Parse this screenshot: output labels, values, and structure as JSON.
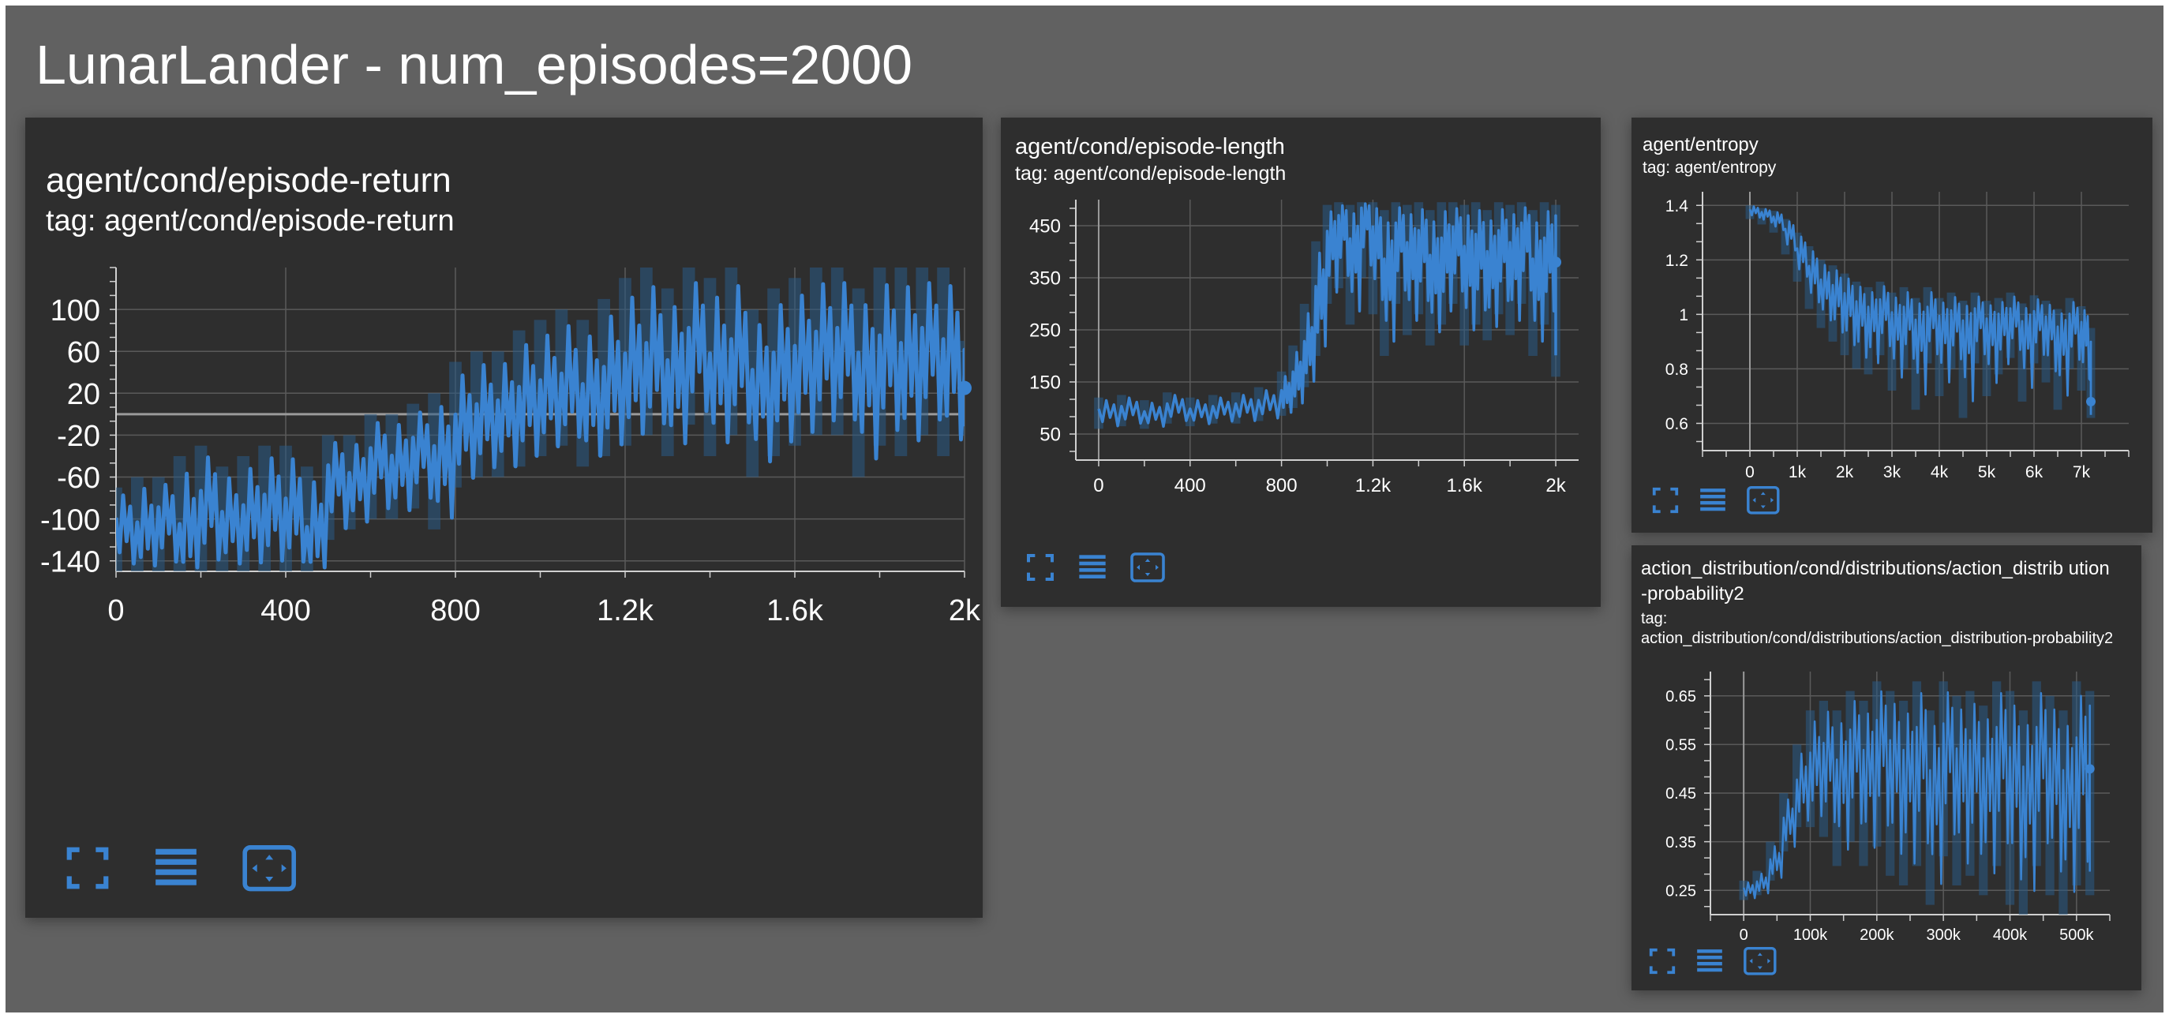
{
  "page": {
    "title": "LunarLander - num_episodes=2000"
  },
  "colors": {
    "background": "#616161",
    "card": "#2e2e2e",
    "grid": "#5a5a5a",
    "axis": "#d0d0d0",
    "line": "#3a83d1",
    "line_faint": "#2a5a86",
    "icon": "#3a83d1"
  },
  "icons": {
    "fullscreen": "fullscreen-icon",
    "data_table": "data-table-icon",
    "fit_domain": "fit-domain-icon"
  },
  "charts": [
    {
      "id": "return",
      "title": "agent/cond/episode-return",
      "tag": "tag: agent/cond/episode-return"
    },
    {
      "id": "length",
      "title": "agent/cond/episode-length",
      "tag": "tag: agent/cond/episode-length"
    },
    {
      "id": "entropy",
      "title": "agent/entropy",
      "tag": "tag: agent/entropy"
    },
    {
      "id": "action",
      "title": "action_distribution/cond/distributions/action_distrib ution-probability2",
      "tag_label": "tag:",
      "tag": "action_distribution/cond/distributions/action_distribution-probability2"
    }
  ],
  "chart_data": [
    {
      "type": "line",
      "title": "agent/cond/episode-return",
      "xlim": [
        0,
        2000
      ],
      "ylim": [
        -150,
        140
      ],
      "xticks": [
        0,
        400,
        800,
        1200,
        1600,
        2000
      ],
      "xtick_labels": [
        "0",
        "400",
        "800",
        "1.2k",
        "1.6k",
        "2k"
      ],
      "yticks": [
        -140,
        -100,
        -60,
        -20,
        20,
        60,
        100
      ],
      "ytick_labels": [
        "-140",
        "-100",
        "-60",
        "-20",
        "20",
        "60",
        "100"
      ],
      "zero_line": 0,
      "grid": true,
      "series": [
        {
          "x": [
            0,
            50,
            100,
            150,
            200,
            250,
            300,
            350,
            400,
            450,
            500,
            550,
            600,
            650,
            700,
            750,
            800,
            850,
            900,
            950,
            1000,
            1050,
            1100,
            1150,
            1200,
            1250,
            1300,
            1350,
            1400,
            1450,
            1500,
            1550,
            1600,
            1650,
            1700,
            1750,
            1800,
            1850,
            1900,
            1950,
            2000
          ],
          "y": [
            -110,
            -120,
            -100,
            -130,
            -90,
            -110,
            -105,
            -95,
            -100,
            -130,
            -60,
            -70,
            -45,
            -55,
            -35,
            -50,
            -20,
            -10,
            -5,
            5,
            10,
            15,
            5,
            20,
            30,
            40,
            25,
            60,
            30,
            45,
            20,
            35,
            40,
            55,
            60,
            35,
            50,
            40,
            60,
            45,
            25
          ],
          "low": [
            -150,
            -150,
            -150,
            -150,
            -150,
            -150,
            -150,
            -150,
            -150,
            -150,
            -120,
            -110,
            -100,
            -100,
            -90,
            -110,
            -70,
            -60,
            -60,
            -50,
            -40,
            -30,
            -50,
            -40,
            -30,
            -20,
            -40,
            -10,
            -40,
            -20,
            -60,
            -40,
            -30,
            -20,
            -20,
            -60,
            -30,
            -40,
            -20,
            -40,
            -20
          ],
          "high": [
            -70,
            -60,
            -60,
            -40,
            -30,
            -50,
            -40,
            -30,
            -30,
            -50,
            -20,
            -20,
            0,
            0,
            10,
            20,
            50,
            60,
            60,
            80,
            90,
            100,
            90,
            110,
            130,
            140,
            120,
            140,
            130,
            140,
            100,
            120,
            130,
            140,
            140,
            120,
            140,
            140,
            140,
            140,
            70
          ]
        }
      ]
    },
    {
      "type": "line",
      "title": "agent/cond/episode-length",
      "xlim": [
        -100,
        2100
      ],
      "ylim": [
        0,
        500
      ],
      "xticks": [
        0,
        400,
        800,
        1200,
        1600,
        2000
      ],
      "xtick_labels": [
        "0",
        "400",
        "800",
        "1.2k",
        "1.6k",
        "2k"
      ],
      "yticks": [
        50,
        150,
        250,
        350,
        450
      ],
      "ytick_labels": [
        "50",
        "150",
        "250",
        "350",
        "450"
      ],
      "grid": true,
      "series": [
        {
          "x": [
            0,
            100,
            200,
            300,
            400,
            500,
            600,
            700,
            800,
            850,
            900,
            950,
            1000,
            1050,
            1100,
            1150,
            1200,
            1250,
            1300,
            1350,
            1400,
            1450,
            1500,
            1550,
            1600,
            1650,
            1700,
            1750,
            1800,
            1850,
            1900,
            1950,
            2000
          ],
          "y": [
            90,
            95,
            85,
            100,
            90,
            95,
            100,
            105,
            120,
            150,
            200,
            300,
            420,
            460,
            400,
            480,
            430,
            350,
            440,
            390,
            420,
            360,
            400,
            430,
            380,
            410,
            370,
            420,
            390,
            440,
            350,
            400,
            380
          ],
          "low": [
            60,
            65,
            60,
            70,
            65,
            70,
            70,
            75,
            85,
            100,
            140,
            200,
            300,
            330,
            260,
            350,
            280,
            200,
            300,
            240,
            280,
            220,
            260,
            300,
            220,
            260,
            230,
            280,
            240,
            300,
            200,
            260,
            160
          ],
          "high": [
            120,
            125,
            115,
            130,
            120,
            125,
            130,
            140,
            170,
            220,
            300,
            420,
            490,
            495,
            490,
            495,
            495,
            480,
            495,
            490,
            495,
            480,
            495,
            495,
            490,
            495,
            480,
            495,
            490,
            495,
            480,
            495,
            490
          ]
        }
      ]
    },
    {
      "type": "line",
      "title": "agent/entropy",
      "xlim": [
        -1000,
        8000
      ],
      "ylim": [
        0.5,
        1.45
      ],
      "xticks": [
        0,
        1000,
        2000,
        3000,
        4000,
        5000,
        6000,
        7000
      ],
      "xtick_labels": [
        "0",
        "1k",
        "2k",
        "3k",
        "4k",
        "5k",
        "6k",
        "7k"
      ],
      "yticks": [
        0.6,
        0.8,
        1,
        1.2,
        1.4
      ],
      "ytick_labels": [
        "0.6",
        "0.8",
        "1",
        "1.2",
        "1.4"
      ],
      "grid": true,
      "series": [
        {
          "x": [
            0,
            250,
            500,
            750,
            1000,
            1250,
            1500,
            1750,
            2000,
            2250,
            2500,
            2750,
            3000,
            3250,
            3500,
            3750,
            4000,
            4250,
            4500,
            4750,
            5000,
            5250,
            5500,
            5750,
            6000,
            6250,
            6500,
            6750,
            7000,
            7200
          ],
          "y": [
            1.38,
            1.37,
            1.35,
            1.3,
            1.22,
            1.15,
            1.1,
            1.08,
            1.05,
            1.02,
            1.0,
            1.03,
            0.98,
            1.0,
            0.95,
            1.0,
            0.97,
            0.99,
            0.95,
            1.0,
            0.96,
            0.98,
            1.0,
            0.95,
            0.99,
            0.97,
            0.93,
            0.98,
            0.95,
            0.68
          ],
          "low": [
            1.35,
            1.33,
            1.3,
            1.22,
            1.12,
            1.02,
            0.95,
            0.9,
            0.85,
            0.8,
            0.78,
            0.85,
            0.72,
            0.8,
            0.65,
            0.82,
            0.7,
            0.8,
            0.62,
            0.82,
            0.7,
            0.78,
            0.84,
            0.68,
            0.82,
            0.75,
            0.65,
            0.8,
            0.72,
            0.62
          ],
          "high": [
            1.4,
            1.39,
            1.38,
            1.35,
            1.3,
            1.25,
            1.2,
            1.18,
            1.15,
            1.12,
            1.1,
            1.12,
            1.08,
            1.1,
            1.06,
            1.1,
            1.06,
            1.08,
            1.05,
            1.08,
            1.05,
            1.06,
            1.08,
            1.04,
            1.07,
            1.05,
            1.02,
            1.06,
            1.03,
            0.95
          ]
        }
      ]
    },
    {
      "type": "line",
      "title": "action_distribution/cond/distributions/action_distrib ution-probability2",
      "xlim": [
        -50000,
        550000
      ],
      "ylim": [
        0.2,
        0.7
      ],
      "xticks": [
        0,
        100000,
        200000,
        300000,
        400000,
        500000
      ],
      "xtick_labels": [
        "0",
        "100k",
        "200k",
        "300k",
        "400k",
        "500k"
      ],
      "yticks": [
        0.25,
        0.35,
        0.45,
        0.55,
        0.65
      ],
      "ytick_labels": [
        "0.25",
        "0.35",
        "0.45",
        "0.55",
        "0.65"
      ],
      "grid": true,
      "series": [
        {
          "x": [
            0,
            20000,
            40000,
            60000,
            80000,
            100000,
            120000,
            140000,
            160000,
            180000,
            200000,
            220000,
            240000,
            260000,
            280000,
            300000,
            320000,
            340000,
            360000,
            380000,
            400000,
            420000,
            440000,
            460000,
            480000,
            500000,
            520000
          ],
          "y": [
            0.25,
            0.26,
            0.3,
            0.38,
            0.45,
            0.5,
            0.52,
            0.48,
            0.55,
            0.5,
            0.57,
            0.52,
            0.5,
            0.55,
            0.45,
            0.56,
            0.5,
            0.52,
            0.48,
            0.55,
            0.5,
            0.46,
            0.55,
            0.5,
            0.45,
            0.52,
            0.5
          ],
          "low": [
            0.23,
            0.24,
            0.27,
            0.33,
            0.38,
            0.38,
            0.36,
            0.3,
            0.35,
            0.3,
            0.34,
            0.28,
            0.26,
            0.3,
            0.22,
            0.32,
            0.26,
            0.28,
            0.24,
            0.3,
            0.22,
            0.2,
            0.3,
            0.24,
            0.2,
            0.26,
            0.24
          ],
          "high": [
            0.27,
            0.29,
            0.35,
            0.45,
            0.55,
            0.62,
            0.64,
            0.62,
            0.66,
            0.64,
            0.68,
            0.66,
            0.64,
            0.68,
            0.62,
            0.68,
            0.65,
            0.66,
            0.63,
            0.68,
            0.66,
            0.62,
            0.68,
            0.65,
            0.62,
            0.68,
            0.66
          ]
        }
      ]
    }
  ]
}
